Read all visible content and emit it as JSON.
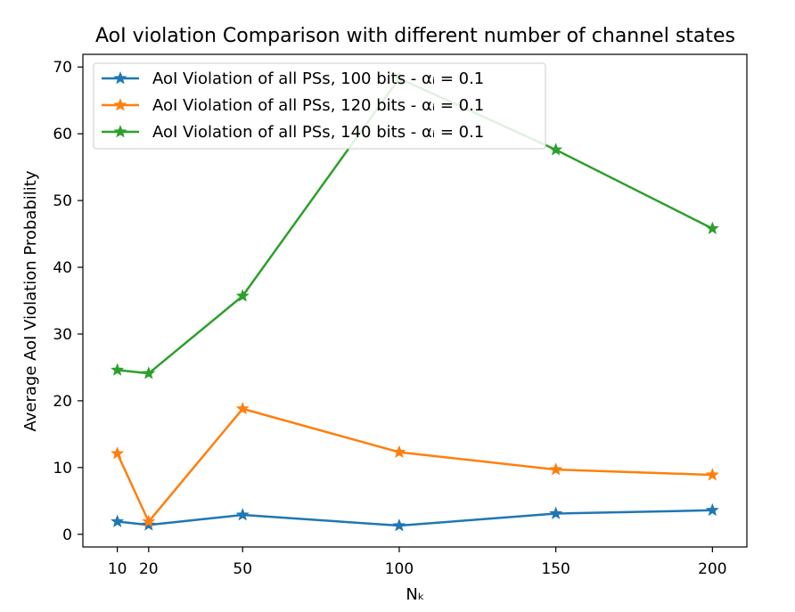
{
  "chart_data": {
    "type": "line",
    "title": "AoI violation Comparison with different number of channel states",
    "xlabel": "Nₖ",
    "ylabel": "Average AoI Violation Probability",
    "x": [
      10,
      20,
      50,
      100,
      150,
      200
    ],
    "xticks": [
      10,
      20,
      50,
      100,
      150,
      200
    ],
    "yticks": [
      0,
      10,
      20,
      30,
      40,
      50,
      60,
      70
    ],
    "xlim": [
      -1,
      211
    ],
    "ylim": [
      -1.9,
      71.9
    ],
    "legend_position": "upper-left",
    "grid": false,
    "marker": "star",
    "series": [
      {
        "name": "AoI Violation of all PSs, 100 bits - αᵢ = 0.1",
        "color": "#1f77b4",
        "values": [
          1.9,
          1.4,
          2.9,
          1.3,
          3.1,
          3.6
        ]
      },
      {
        "name": "AoI Violation of all PSs, 120 bits - αᵢ = 0.1",
        "color": "#ff7f0e",
        "values": [
          12.1,
          1.9,
          18.8,
          12.3,
          9.7,
          8.9
        ]
      },
      {
        "name": "AoI Violation of all PSs, 140 bits - αᵢ = 0.1",
        "color": "#2ca02c",
        "values": [
          24.6,
          24.1,
          35.7,
          68.3,
          57.6,
          45.8
        ]
      }
    ]
  }
}
